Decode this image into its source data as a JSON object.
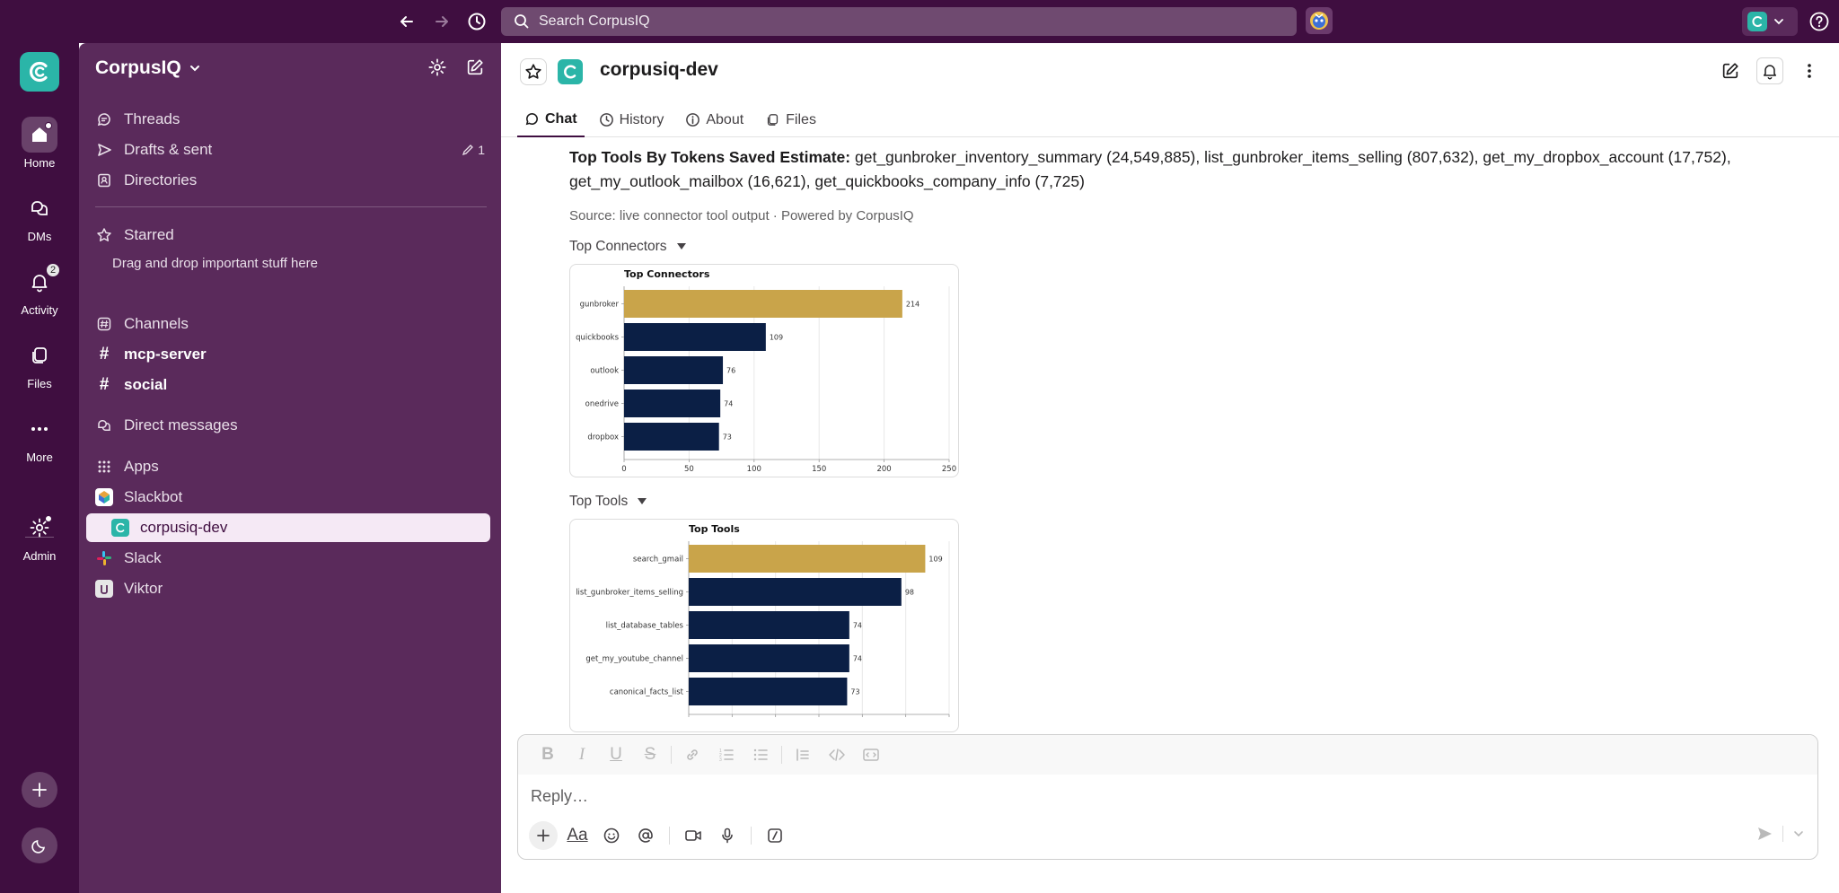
{
  "topbar": {
    "search_placeholder": "Search CorpusIQ"
  },
  "rail": {
    "items": [
      {
        "label": "Home",
        "icon": "home-icon"
      },
      {
        "label": "DMs",
        "icon": "dm-icon"
      },
      {
        "label": "Activity",
        "icon": "bell-icon",
        "badge": "2"
      },
      {
        "label": "Files",
        "icon": "files-icon"
      },
      {
        "label": "More",
        "icon": "more-icon"
      },
      {
        "label": "Admin",
        "icon": "gear-icon"
      }
    ]
  },
  "sidebar": {
    "workspace_name": "CorpusIQ",
    "nav": [
      {
        "label": "Threads"
      },
      {
        "label": "Drafts & sent",
        "count": "1"
      },
      {
        "label": "Directories"
      }
    ],
    "starred_label": "Starred",
    "starred_hint": "Drag and drop important stuff here",
    "channels_label": "Channels",
    "channels": [
      "mcp-server",
      "social"
    ],
    "direct_messages_label": "Direct messages",
    "apps_label": "Apps",
    "apps": [
      "Slackbot",
      "corpusiq-dev",
      "Slack",
      "Viktor"
    ]
  },
  "channel": {
    "name": "corpusiq-dev",
    "tabs": [
      "Chat",
      "History",
      "About",
      "Files"
    ]
  },
  "message": {
    "bold_prefix": "Top Tools By Tokens Saved Estimate:",
    "body": " get_gunbroker_inventory_summary (24,549,885), list_gunbroker_items_selling (807,632), get_my_dropbox_account (17,752), get_my_outlook_mailbox (16,621), get_quickbooks_company_info (7,725)",
    "source": "Source: live connector tool output · Powered by CorpusIQ"
  },
  "attachments": [
    {
      "title": "Top Connectors"
    },
    {
      "title": "Top Tools"
    }
  ],
  "composer": {
    "placeholder": "Reply…"
  },
  "colors": {
    "aubergine": "#3f0e40",
    "sidebar": "#5a2a5b",
    "bar_highlight": "#c9a44a",
    "bar_default": "#0b1f45",
    "teal": "#2bb5a8"
  },
  "chart_data": [
    {
      "type": "bar",
      "orientation": "horizontal",
      "title": "Top Connectors",
      "categories": [
        "gunbroker",
        "quickbooks",
        "outlook",
        "onedrive",
        "dropbox"
      ],
      "values": [
        214,
        109,
        76,
        74,
        73
      ],
      "xlim": [
        0,
        250
      ],
      "xticks": [
        "0",
        "50",
        "100",
        "150",
        "200",
        "250"
      ],
      "grid": true
    },
    {
      "type": "bar",
      "orientation": "horizontal",
      "title": "Top Tools",
      "categories": [
        "search_gmail",
        "list_gunbroker_items_selling",
        "list_database_tables",
        "get_my_youtube_channel",
        "canonical_facts_list"
      ],
      "values": [
        109,
        98,
        74,
        74,
        73
      ],
      "xlim": [
        0,
        120
      ],
      "grid": true
    }
  ]
}
